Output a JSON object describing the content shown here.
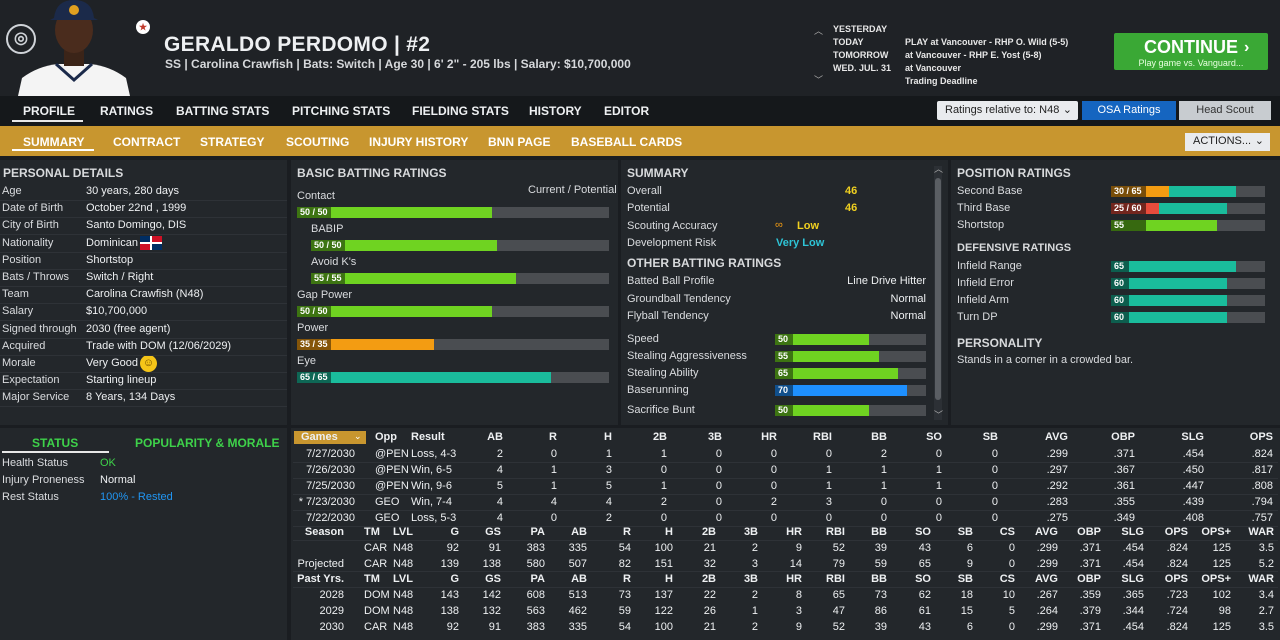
{
  "header": {
    "logo_icon": "team-logo-icon",
    "player_name": "GERALDO PERDOMO  |  #2",
    "meta": "SS | Carolina Crawfish  |  Bats: Switch  |  Age 30  |  6' 2\"  - 205 lbs  |  Salary: $10,700,000",
    "calendar": [
      {
        "day": "YESTERDAY",
        "event": ""
      },
      {
        "day": "TODAY",
        "event": "PLAY at Vancouver - RHP O. Wild (5-5)"
      },
      {
        "day": "TOMORROW",
        "event": "at Vancouver - RHP E. Yost (5-8)"
      },
      {
        "day": "WED. JUL. 31",
        "event": "at Vancouver"
      },
      {
        "day": "",
        "event": "Trading Deadline"
      }
    ],
    "continue_label": "CONTINUE",
    "continue_sub": "Play game vs. Vanguard..."
  },
  "nav": {
    "tabs": [
      "PROFILE",
      "RATINGS",
      "BATTING STATS",
      "PITCHING STATS",
      "FIELDING STATS",
      "HISTORY",
      "EDITOR"
    ],
    "ratings_relative": "Ratings relative to: N48",
    "osa": "OSA Ratings",
    "scout": "Head Scout"
  },
  "subnav": {
    "tabs": [
      "SUMMARY",
      "CONTRACT",
      "STRATEGY",
      "SCOUTING",
      "INJURY HISTORY",
      "BNN PAGE",
      "BASEBALL CARDS"
    ],
    "actions": "ACTIONS..."
  },
  "personal": {
    "title": "PERSONAL DETAILS",
    "rows": [
      [
        "Age",
        "30 years, 280 days"
      ],
      [
        "Date of Birth",
        "October 22nd , 1999"
      ],
      [
        "City of Birth",
        "Santo Domingo, DIS"
      ],
      [
        "Nationality",
        "Dominican"
      ],
      [
        "Position",
        "Shortstop"
      ],
      [
        "Bats / Throws",
        "Switch / Right"
      ],
      [
        "Team",
        "Carolina Crawfish (N48)"
      ],
      [
        "Salary",
        "$10,700,000"
      ],
      [
        "Signed through",
        "2030 (free agent)"
      ],
      [
        "Acquired",
        "Trade with DOM (12/06/2029)"
      ],
      [
        "Morale",
        "Very Good"
      ],
      [
        "Expectation",
        "Starting lineup"
      ],
      [
        "Major Service",
        "8 Years, 134 Days"
      ]
    ]
  },
  "status": {
    "tab_status": "STATUS",
    "tab_pop": "POPULARITY & MORALE",
    "rows": [
      [
        "Health Status",
        "OK"
      ],
      [
        "Injury Proneness",
        "Normal"
      ],
      [
        "Rest Status",
        "100% - Rested"
      ]
    ]
  },
  "batting": {
    "title": "BASIC BATTING RATINGS",
    "header_right": "Current / Potential",
    "ratings": [
      {
        "name": "Contact",
        "text": "50 / 50",
        "value": 50,
        "color": "#6fd321"
      },
      {
        "name": "BABIP",
        "text": "50 / 50",
        "value": 50,
        "color": "#6fd321"
      },
      {
        "name": "Avoid K's",
        "text": "55 / 55",
        "value": 55,
        "color": "#6fd321"
      },
      {
        "name": "Gap Power",
        "text": "50 / 50",
        "value": 50,
        "color": "#6fd321"
      },
      {
        "name": "Power",
        "text": "35 / 35",
        "value": 35,
        "color": "#f39c12"
      },
      {
        "name": "Eye",
        "text": "65 / 65",
        "value": 65,
        "color": "#1abc9c"
      }
    ]
  },
  "summary": {
    "title": "SUMMARY",
    "overall_label": "Overall",
    "overall": "46",
    "potential_label": "Potential",
    "potential": "46",
    "scout_label": "Scouting Accuracy",
    "scout": "Low",
    "dev_label": "Development Risk",
    "dev": "Very Low",
    "other_title": "OTHER BATTING RATINGS",
    "other": [
      [
        "Batted Ball Profile",
        "Line Drive Hitter"
      ],
      [
        "Groundball Tendency",
        "Normal"
      ],
      [
        "Flyball Tendency",
        "Normal"
      ]
    ],
    "speed": [
      {
        "name": "Speed",
        "value": 50,
        "color": "#6fd321"
      },
      {
        "name": "Stealing Aggressiveness",
        "value": 55,
        "color": "#6fd321"
      },
      {
        "name": "Stealing Ability",
        "value": 65,
        "color": "#6fd321"
      },
      {
        "name": "Baserunning",
        "value": 70,
        "color": "#1e90ff"
      },
      {
        "name": "Sacrifice Bunt",
        "value": 50,
        "color": "#6fd321"
      }
    ]
  },
  "position": {
    "title": "POSITION RATINGS",
    "rows": [
      {
        "name": "Second Base",
        "text": "30 / 65",
        "cur": 30,
        "pot": 65,
        "color": "#f39c12"
      },
      {
        "name": "Third Base",
        "text": "25 / 60",
        "cur": 25,
        "pot": 60,
        "color": "#e74c3c"
      },
      {
        "name": "Shortstop",
        "text": "55",
        "cur": 55,
        "pot": 55,
        "color": "#6fd321"
      }
    ],
    "def_title": "DEFENSIVE RATINGS",
    "def": [
      {
        "name": "Infield Range",
        "value": 65
      },
      {
        "name": "Infield Error",
        "value": 60
      },
      {
        "name": "Infield Arm",
        "value": 60
      },
      {
        "name": "Turn DP",
        "value": 60
      }
    ],
    "pers_title": "PERSONALITY",
    "pers_text": "Stands in a corner in a crowded bar."
  },
  "games": {
    "headers": [
      "Games",
      "Opp",
      "Result",
      "AB",
      "R",
      "H",
      "2B",
      "3B",
      "HR",
      "RBI",
      "BB",
      "SO",
      "SB",
      "AVG",
      "OBP",
      "SLG",
      "OPS"
    ],
    "rows": [
      [
        "7/27/2030",
        "@PEN",
        "Loss, 4-3",
        "2",
        "0",
        "1",
        "1",
        "0",
        "0",
        "0",
        "2",
        "0",
        "0",
        ".299",
        ".371",
        ".454",
        ".824"
      ],
      [
        "7/26/2030",
        "@PEN",
        "Win, 6-5",
        "4",
        "1",
        "3",
        "0",
        "0",
        "0",
        "1",
        "1",
        "1",
        "0",
        ".297",
        ".367",
        ".450",
        ".817"
      ],
      [
        "7/25/2030",
        "@PEN",
        "Win, 9-6",
        "5",
        "1",
        "5",
        "1",
        "0",
        "0",
        "1",
        "1",
        "1",
        "0",
        ".292",
        ".361",
        ".447",
        ".808"
      ],
      [
        "* 7/23/2030",
        "GEO",
        "Win, 7-4",
        "4",
        "4",
        "4",
        "2",
        "0",
        "2",
        "3",
        "0",
        "0",
        "0",
        ".283",
        ".355",
        ".439",
        ".794"
      ],
      [
        "7/22/2030",
        "GEO",
        "Loss, 5-3",
        "4",
        "0",
        "2",
        "0",
        "0",
        "0",
        "0",
        "0",
        "0",
        "0",
        ".275",
        ".349",
        ".408",
        ".757"
      ]
    ]
  },
  "season": {
    "headers": [
      "Season",
      "TM",
      "LVL",
      "G",
      "GS",
      "PA",
      "AB",
      "R",
      "H",
      "2B",
      "3B",
      "HR",
      "RBI",
      "BB",
      "SO",
      "SB",
      "CS",
      "AVG",
      "OBP",
      "SLG",
      "OPS",
      "OPS+",
      "WAR"
    ],
    "rows": [
      [
        "",
        "CAR",
        "N48",
        "92",
        "91",
        "383",
        "335",
        "54",
        "100",
        "21",
        "2",
        "9",
        "52",
        "39",
        "43",
        "6",
        "0",
        ".299",
        ".371",
        ".454",
        ".824",
        "125",
        "3.5"
      ],
      [
        "Projected",
        "CAR",
        "N48",
        "139",
        "138",
        "580",
        "507",
        "82",
        "151",
        "32",
        "3",
        "14",
        "79",
        "59",
        "65",
        "9",
        "0",
        ".299",
        ".371",
        ".454",
        ".824",
        "125",
        "5.2"
      ]
    ],
    "past_headers": [
      "Past Yrs.",
      "TM",
      "LVL",
      "G",
      "GS",
      "PA",
      "AB",
      "R",
      "H",
      "2B",
      "3B",
      "HR",
      "RBI",
      "BB",
      "SO",
      "SB",
      "CS",
      "AVG",
      "OBP",
      "SLG",
      "OPS",
      "OPS+",
      "WAR"
    ],
    "past_rows": [
      [
        "2028",
        "DOM",
        "N48",
        "143",
        "142",
        "608",
        "513",
        "73",
        "137",
        "22",
        "2",
        "8",
        "65",
        "73",
        "62",
        "18",
        "10",
        ".267",
        ".359",
        ".365",
        ".723",
        "102",
        "3.4"
      ],
      [
        "2029",
        "DOM",
        "N48",
        "138",
        "132",
        "563",
        "462",
        "59",
        "122",
        "26",
        "1",
        "3",
        "47",
        "86",
        "61",
        "15",
        "5",
        ".264",
        ".379",
        ".344",
        ".724",
        "98",
        "2.7"
      ],
      [
        "2030",
        "CAR",
        "N48",
        "92",
        "91",
        "383",
        "335",
        "54",
        "100",
        "21",
        "2",
        "9",
        "52",
        "39",
        "43",
        "6",
        "0",
        ".299",
        ".371",
        ".454",
        ".824",
        "125",
        "3.5"
      ]
    ]
  }
}
